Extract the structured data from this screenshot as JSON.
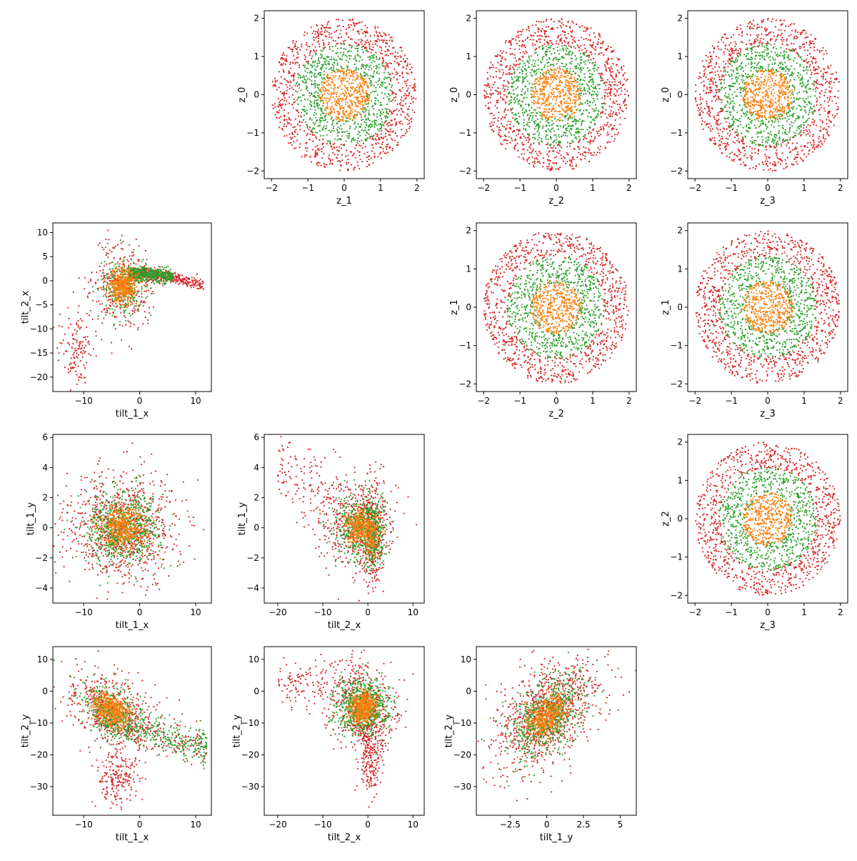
{
  "figure": {
    "background": "#ffffff",
    "series_colors": [
      "#d62728",
      "#2ca02c",
      "#ff7f0e"
    ],
    "point_counts_visual": [
      900,
      700,
      450
    ]
  },
  "chart_data": [
    {
      "type": "scatter",
      "xlabel": "z_1",
      "ylabel": "z_0",
      "xlim": [
        -2.2,
        2.2
      ],
      "ylim": [
        -2.2,
        2.2
      ],
      "xticks": [
        -2,
        -1,
        0,
        1,
        2
      ],
      "yticks": [
        -2,
        -1,
        0,
        1,
        2
      ],
      "shape": "rings",
      "seed": 11
    },
    {
      "type": "scatter",
      "xlabel": "z_2",
      "ylabel": "z_0",
      "xlim": [
        -2.2,
        2.2
      ],
      "ylim": [
        -2.2,
        2.2
      ],
      "xticks": [
        -2,
        -1,
        0,
        1,
        2
      ],
      "yticks": [
        -2,
        -1,
        0,
        1,
        2
      ],
      "shape": "rings",
      "seed": 12
    },
    {
      "type": "scatter",
      "xlabel": "z_3",
      "ylabel": "z_0",
      "xlim": [
        -2.2,
        2.2
      ],
      "ylim": [
        -2.2,
        2.2
      ],
      "xticks": [
        -2,
        -1,
        0,
        1,
        2
      ],
      "yticks": [
        -2,
        -1,
        0,
        1,
        2
      ],
      "shape": "rings",
      "seed": 13
    },
    {
      "type": "scatter",
      "xlabel": "tilt_1_x",
      "ylabel": "tilt_2_x",
      "xlim": [
        -15.5,
        12.8
      ],
      "ylim": [
        -23,
        12
      ],
      "xticks": [
        -10,
        0,
        10
      ],
      "yticks": [
        -20,
        -15,
        -10,
        -5,
        0,
        5,
        10
      ],
      "shape": "t1x_t2x",
      "seed": 21
    },
    {
      "type": "scatter",
      "xlabel": "z_2",
      "ylabel": "z_1",
      "xlim": [
        -2.2,
        2.2
      ],
      "ylim": [
        -2.2,
        2.2
      ],
      "xticks": [
        -2,
        -1,
        0,
        1,
        2
      ],
      "yticks": [
        -2,
        -1,
        0,
        1,
        2
      ],
      "shape": "rings",
      "seed": 22
    },
    {
      "type": "scatter",
      "xlabel": "z_3",
      "ylabel": "z_1",
      "xlim": [
        -2.2,
        2.2
      ],
      "ylim": [
        -2.2,
        2.2
      ],
      "xticks": [
        -2,
        -1,
        0,
        1,
        2
      ],
      "yticks": [
        -2,
        -1,
        0,
        1,
        2
      ],
      "shape": "rings",
      "seed": 23
    },
    {
      "type": "scatter",
      "xlabel": "tilt_1_x",
      "ylabel": "tilt_1_y",
      "xlim": [
        -15.5,
        12.8
      ],
      "ylim": [
        -5,
        6.2
      ],
      "xticks": [
        -10,
        0,
        10
      ],
      "yticks": [
        -4,
        -2,
        0,
        2,
        4,
        6
      ],
      "shape": "t1x_t1y",
      "seed": 31
    },
    {
      "type": "scatter",
      "xlabel": "tilt_2_x",
      "ylabel": "tilt_1_y",
      "xlim": [
        -23,
        12.5
      ],
      "ylim": [
        -5,
        6.2
      ],
      "xticks": [
        -20,
        -10,
        0,
        10
      ],
      "yticks": [
        -4,
        -2,
        0,
        2,
        4,
        6
      ],
      "shape": "t2x_t1y",
      "seed": 32
    },
    {
      "type": "scatter",
      "xlabel": "z_3",
      "ylabel": "z_2",
      "xlim": [
        -2.2,
        2.2
      ],
      "ylim": [
        -2.2,
        2.2
      ],
      "xticks": [
        -2,
        -1,
        0,
        1,
        2
      ],
      "yticks": [
        -2,
        -1,
        0,
        1,
        2
      ],
      "shape": "rings",
      "seed": 33
    },
    {
      "type": "scatter",
      "xlabel": "tilt_1_x",
      "ylabel": "tilt_2_y",
      "xlim": [
        -15.5,
        12.8
      ],
      "ylim": [
        -39,
        14
      ],
      "xticks": [
        -10,
        0,
        10
      ],
      "yticks": [
        -30,
        -20,
        -10,
        0,
        10
      ],
      "shape": "t1x_t2y",
      "seed": 41
    },
    {
      "type": "scatter",
      "xlabel": "tilt_2_x",
      "ylabel": "tilt_2_y",
      "xlim": [
        -23,
        12.5
      ],
      "ylim": [
        -39,
        14
      ],
      "xticks": [
        -20,
        -10,
        0,
        10
      ],
      "yticks": [
        -30,
        -20,
        -10,
        0,
        10
      ],
      "shape": "t2x_t2y",
      "seed": 42
    },
    {
      "type": "scatter",
      "xlabel": "tilt_1_y",
      "ylabel": "tilt_2_y",
      "xlim": [
        -4.8,
        6.1
      ],
      "ylim": [
        -39,
        14
      ],
      "xticks": [
        -2.5,
        0.0,
        2.5,
        5.0
      ],
      "yticks": [
        -30,
        -20,
        -10,
        0,
        10
      ],
      "shape": "t1y_t2y",
      "seed": 43
    }
  ]
}
